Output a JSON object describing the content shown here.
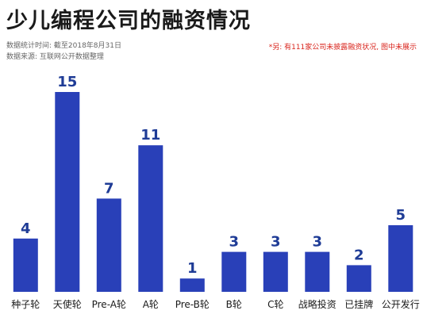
{
  "header": {
    "title": "少儿编程公司的融资情况",
    "stat_time": "数据统计时间: 截至2018年8月31日",
    "source": "数据来源: 互联网公开数据整理",
    "note": "*另: 有111家公司未披露融资状况, 图中未展示"
  },
  "colors": {
    "bar": "#2940b8",
    "label": "#1f3c96",
    "note": "#d9251d"
  },
  "chart_data": {
    "type": "bar",
    "title": "少儿编程公司的融资情况",
    "xlabel": "",
    "ylabel": "",
    "categories": [
      "种子轮",
      "天使轮",
      "Pre-A轮",
      "A轮",
      "Pre-B轮",
      "B轮",
      "C轮",
      "战略投资",
      "已挂牌",
      "公开发行"
    ],
    "values": [
      4,
      15,
      7,
      11,
      1,
      3,
      3,
      3,
      2,
      5
    ],
    "ylim": [
      0,
      15
    ],
    "grid": false,
    "data_labels": true
  }
}
